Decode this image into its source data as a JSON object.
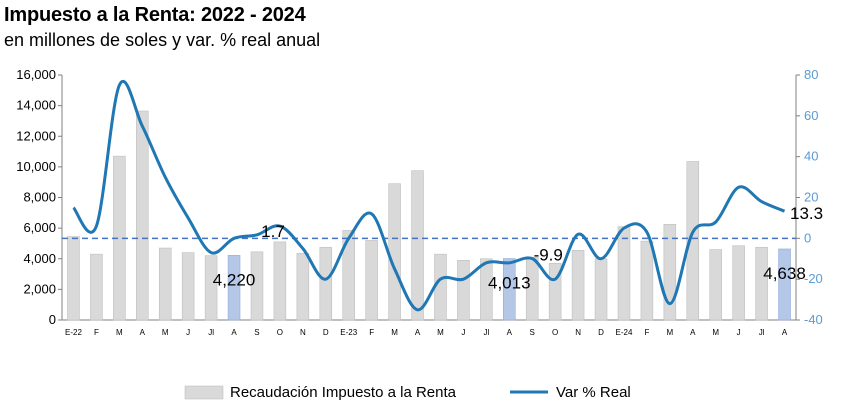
{
  "chart_data": {
    "type": "bar",
    "title": "Impuesto a la Renta: 2022 - 2024",
    "subtitle": "en millones de soles y var. % real anual",
    "categories": [
      "E-22",
      "F",
      "M",
      "A",
      "M",
      "J",
      "Jl",
      "A",
      "S",
      "O",
      "N",
      "D",
      "E-23",
      "F",
      "M",
      "A",
      "M",
      "J",
      "Jl",
      "A",
      "S",
      "O",
      "N",
      "D",
      "E-24",
      "F",
      "M",
      "A",
      "M",
      "J",
      "Jl",
      "A"
    ],
    "series": [
      {
        "name": "Recaudación Impuesto a la Renta",
        "type": "bar",
        "axis": "left",
        "color": "#d9d9d9",
        "highlight_color": "#b4c7e7",
        "highlight_indices": [
          7,
          19,
          31
        ],
        "values": [
          5450,
          4300,
          10700,
          13650,
          4700,
          4400,
          4200,
          4220,
          4450,
          5100,
          4350,
          4750,
          5850,
          5200,
          8900,
          9750,
          4300,
          3900,
          4000,
          4013,
          4100,
          3700,
          4550,
          4000,
          6100,
          5150,
          6250,
          10350,
          4600,
          4850,
          4750,
          4638
        ]
      },
      {
        "name": "Var % Real",
        "type": "line",
        "axis": "right",
        "color": "#1f77b4",
        "values": [
          15,
          6,
          75,
          55,
          30,
          10,
          -7,
          0,
          1.7,
          6,
          -5,
          -20,
          0,
          12,
          -15,
          -35,
          -20,
          -20,
          -12,
          -12,
          -9.9,
          -20,
          2,
          -10,
          5,
          3,
          -32,
          3,
          8,
          25,
          18,
          13.3
        ]
      }
    ],
    "y_left": {
      "ylim": [
        0,
        16000
      ],
      "ticks": [
        "0",
        "2,000",
        "4,000",
        "6,000",
        "8,000",
        "10,000",
        "12,000",
        "14,000",
        "16,000"
      ]
    },
    "y_right": {
      "ylim": [
        -40,
        80
      ],
      "ticks": [
        "-40",
        "-20",
        "0",
        "20",
        "40",
        "60",
        "80"
      ]
    },
    "reference_line": {
      "value": 0,
      "axis": "right",
      "style": "dashed",
      "color": "#4472c4"
    },
    "data_labels": [
      {
        "text": "4,220",
        "index": 7,
        "series": 0
      },
      {
        "text": "1.7",
        "index": 8,
        "series": 1
      },
      {
        "text": "4,013",
        "index": 19,
        "series": 0
      },
      {
        "text": "-9.9",
        "index": 20,
        "series": 1
      },
      {
        "text": "4,638",
        "index": 31,
        "series": 0
      },
      {
        "text": "13.3",
        "index": 31,
        "series": 1
      }
    ],
    "legend": {
      "position": "bottom",
      "entries": [
        "Recaudación Impuesto a la Renta",
        "Var % Real"
      ]
    },
    "grid": false
  }
}
